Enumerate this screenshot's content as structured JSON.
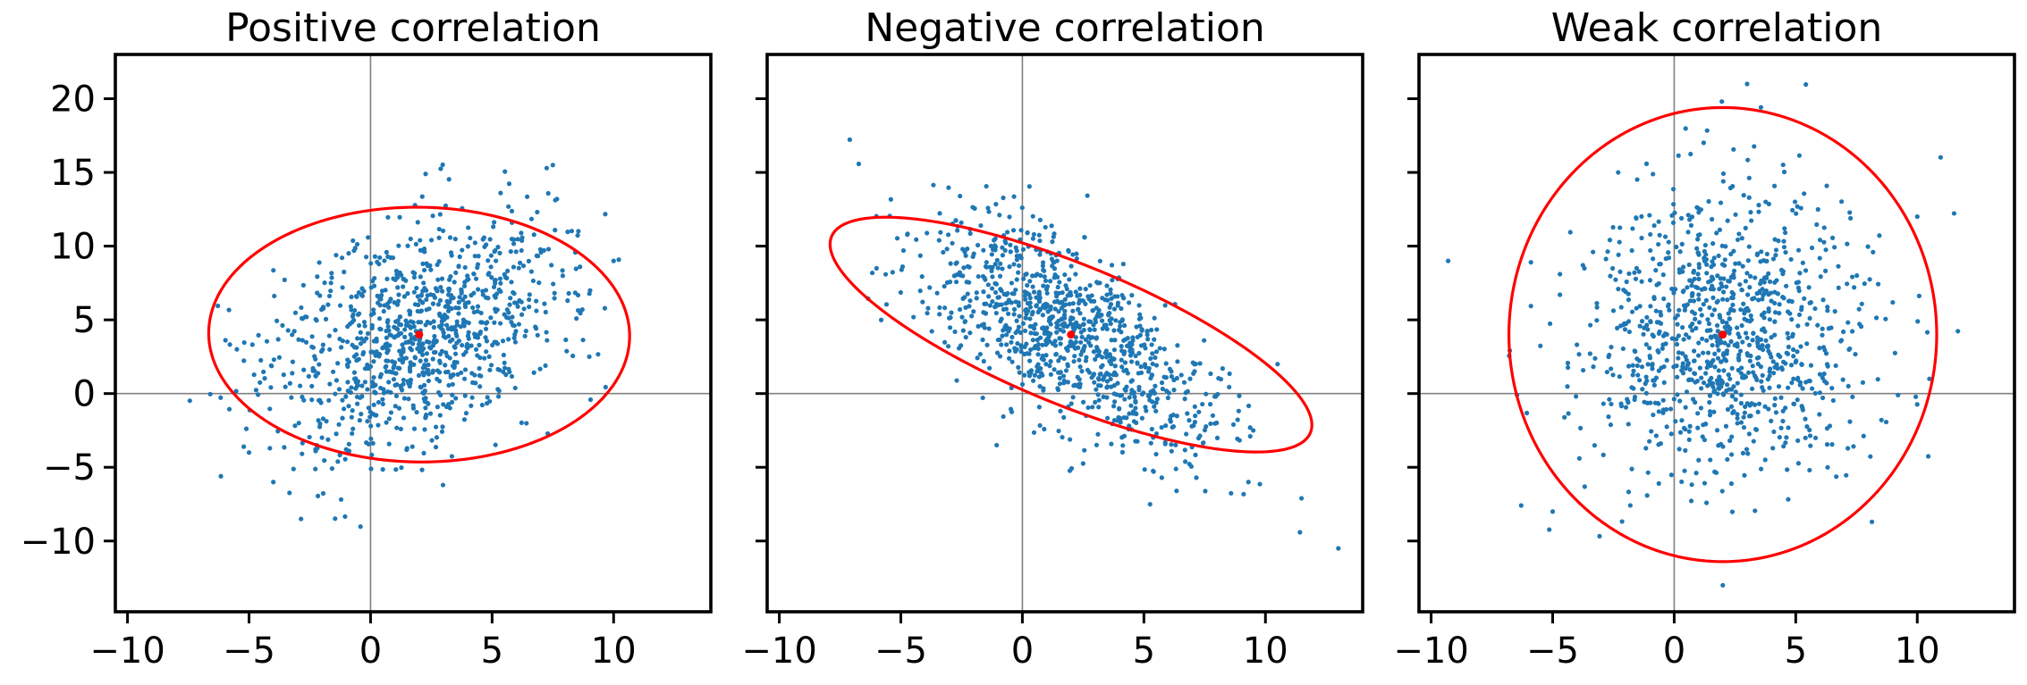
{
  "colors": {
    "points": "#1f77b4",
    "ellipse": "#ff0000",
    "mean": "#ff0000",
    "reference_lines": "#808080"
  },
  "chart_data": [
    {
      "type": "scatter",
      "title": "Positive correlation",
      "xlim": [
        -10.5,
        14
      ],
      "ylim": [
        -14.8,
        23
      ],
      "xticks": [
        -10,
        -5,
        0,
        5,
        10
      ],
      "yticks": [
        -10,
        -5,
        0,
        5,
        10,
        15,
        20
      ],
      "xtick_labels": [
        "−10",
        "−5",
        "0",
        "5",
        "10"
      ],
      "ytick_labels": [
        "−10",
        "−5",
        "0",
        "5",
        "10",
        "15",
        "20"
      ],
      "show_yticklabels": true,
      "reference_lines": {
        "x": 0,
        "y": 0
      },
      "mean": [
        2,
        4
      ],
      "ellipse": {
        "center": [
          2,
          4
        ],
        "semi_axes": [
          8.6,
          8.7
        ],
        "angle_deg": 50,
        "color": "#ff0000"
      },
      "point_cloud": {
        "count": 1000,
        "mean": [
          2,
          4
        ],
        "cov": [
          [
            9,
            4.5
          ],
          [
            4.5,
            16
          ]
        ]
      },
      "highlight_points": [
        [
          -5.5,
          3
        ],
        [
          -5,
          -4
        ],
        [
          7.5,
          15.5
        ],
        [
          10,
          9
        ],
        [
          9,
          2.5
        ],
        [
          -4,
          -6
        ]
      ]
    },
    {
      "type": "scatter",
      "title": "Negative correlation",
      "xlim": [
        -10.5,
        14
      ],
      "ylim": [
        -14.8,
        23
      ],
      "xticks": [
        -10,
        -5,
        0,
        5,
        10
      ],
      "yticks": [
        -10,
        -5,
        0,
        5,
        10,
        15,
        20
      ],
      "xtick_labels": [
        "−10",
        "−5",
        "0",
        "5",
        "10"
      ],
      "ytick_labels": [
        "",
        "",
        "",
        "",
        "",
        "",
        ""
      ],
      "show_yticklabels": false,
      "reference_lines": {
        "x": 0,
        "y": 0
      },
      "mean": [
        2,
        4
      ],
      "ellipse": {
        "center": [
          2,
          4
        ],
        "semi_axes": [
          12,
          4.2
        ],
        "angle_deg": -37,
        "color": "#ff0000"
      },
      "point_cloud": {
        "count": 1000,
        "mean": [
          2,
          4
        ],
        "cov": [
          [
            9,
            -8
          ],
          [
            -8,
            16
          ]
        ]
      },
      "highlight_points": [
        [
          13,
          -10.5
        ],
        [
          10.5,
          2
        ],
        [
          9.3,
          -6
        ],
        [
          -6,
          8.5
        ],
        [
          9.5,
          -2.5
        ]
      ]
    },
    {
      "type": "scatter",
      "title": "Weak correlation",
      "xlim": [
        -10.5,
        14
      ],
      "ylim": [
        -14.8,
        23
      ],
      "xticks": [
        -10,
        -5,
        0,
        5,
        10
      ],
      "yticks": [
        -10,
        -5,
        0,
        5,
        10,
        15,
        20
      ],
      "xtick_labels": [
        "−10",
        "−5",
        "0",
        "5",
        "10"
      ],
      "ytick_labels": [
        "",
        "",
        "",
        "",
        "",
        "",
        ""
      ],
      "show_yticklabels": false,
      "reference_lines": {
        "x": 0,
        "y": 0
      },
      "mean": [
        2,
        4
      ],
      "ellipse": {
        "center": [
          2,
          4
        ],
        "semi_axes": [
          8.8,
          15.4
        ],
        "angle_deg": 0,
        "color": "#ff0000"
      },
      "point_cloud": {
        "count": 1000,
        "mean": [
          2,
          4
        ],
        "cov": [
          [
            9,
            0.8
          ],
          [
            0.8,
            25
          ]
        ]
      },
      "highlight_points": [
        [
          -9.3,
          9
        ],
        [
          -5,
          -8
        ],
        [
          2,
          -13
        ],
        [
          3,
          21
        ],
        [
          10,
          12
        ],
        [
          10.5,
          1
        ]
      ]
    }
  ]
}
